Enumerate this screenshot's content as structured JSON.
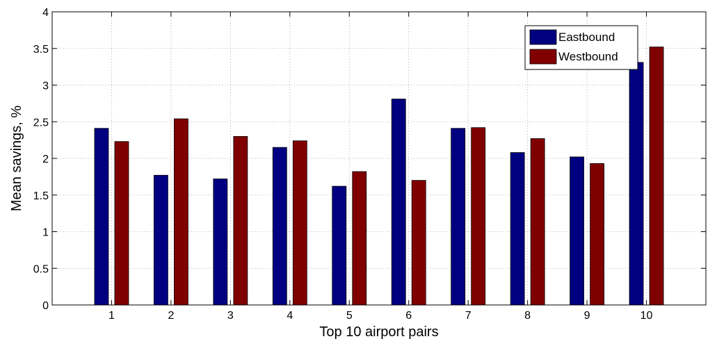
{
  "chart_data": {
    "type": "bar",
    "title": "",
    "xlabel": "Top 10 airport pairs",
    "ylabel": "Mean savings, %",
    "categories": [
      "1",
      "2",
      "3",
      "4",
      "5",
      "6",
      "7",
      "8",
      "9",
      "10"
    ],
    "ylim": [
      0,
      4
    ],
    "yticks": [
      "0",
      "0.5",
      "1",
      "1.5",
      "2",
      "2.5",
      "3",
      "3.5",
      "4"
    ],
    "grid": true,
    "legend_position": "top-right",
    "series": [
      {
        "name": "Eastbound",
        "color": "#000080",
        "values": [
          2.41,
          1.77,
          1.72,
          2.15,
          1.62,
          2.81,
          2.41,
          2.08,
          2.02,
          3.31
        ]
      },
      {
        "name": "Westbound",
        "color": "#800000",
        "values": [
          2.23,
          2.54,
          2.3,
          2.24,
          1.82,
          1.7,
          2.42,
          2.27,
          1.93,
          3.52
        ]
      }
    ]
  }
}
